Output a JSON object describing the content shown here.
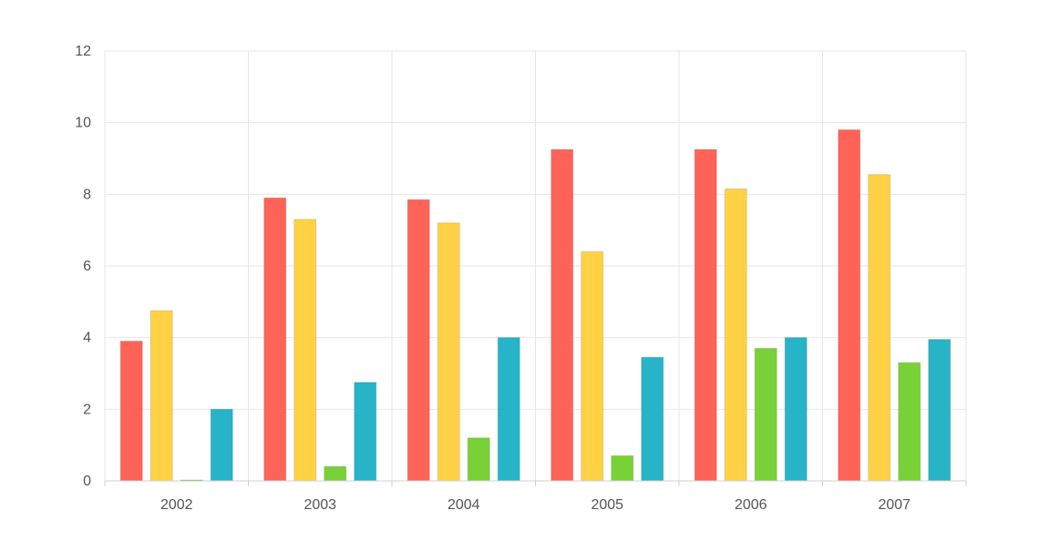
{
  "chart_data": {
    "type": "bar",
    "title": "",
    "xlabel": "",
    "ylabel": "",
    "categories": [
      "2002",
      "2003",
      "2004",
      "2005",
      "2006",
      "2007"
    ],
    "ylim": [
      0,
      12
    ],
    "yticks": [
      "0",
      "2",
      "4",
      "6",
      "8",
      "10",
      "12"
    ],
    "grid": true,
    "legend": "none",
    "series": [
      {
        "color": "#ff6358",
        "values": [
          3.9,
          7.9,
          7.85,
          9.25,
          9.25,
          9.8
        ]
      },
      {
        "color": "#ffd246",
        "values": [
          4.75,
          7.3,
          7.2,
          6.4,
          8.15,
          8.55
        ]
      },
      {
        "color": "#78d237",
        "values": [
          0,
          0.4,
          1.2,
          0.7,
          3.7,
          3.3
        ]
      },
      {
        "color": "#28b4c8",
        "values": [
          2.0,
          2.75,
          4.0,
          3.45,
          4.0,
          3.95
        ]
      }
    ]
  }
}
